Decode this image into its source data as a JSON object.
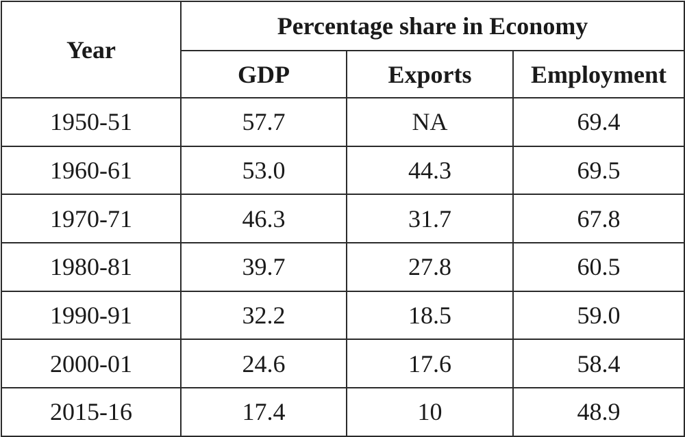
{
  "table": {
    "year_header": "Year",
    "group_header": "Percentage share in Economy",
    "columns": [
      "GDP",
      "Exports",
      "Employment"
    ],
    "rows": [
      {
        "year": "1950-51",
        "gdp": "57.7",
        "exports": "NA",
        "employment": "69.4"
      },
      {
        "year": "1960-61",
        "gdp": "53.0",
        "exports": "44.3",
        "employment": "69.5"
      },
      {
        "year": "1970-71",
        "gdp": "46.3",
        "exports": "31.7",
        "employment": "67.8"
      },
      {
        "year": "1980-81",
        "gdp": "39.7",
        "exports": "27.8",
        "employment": "60.5"
      },
      {
        "year": "1990-91",
        "gdp": "32.2",
        "exports": "18.5",
        "employment": "59.0"
      },
      {
        "year": "2000-01",
        "gdp": "24.6",
        "exports": "17.6",
        "employment": "58.4"
      },
      {
        "year": "2015-16",
        "gdp": "17.4",
        "exports": "10",
        "employment": "48.9"
      }
    ]
  }
}
